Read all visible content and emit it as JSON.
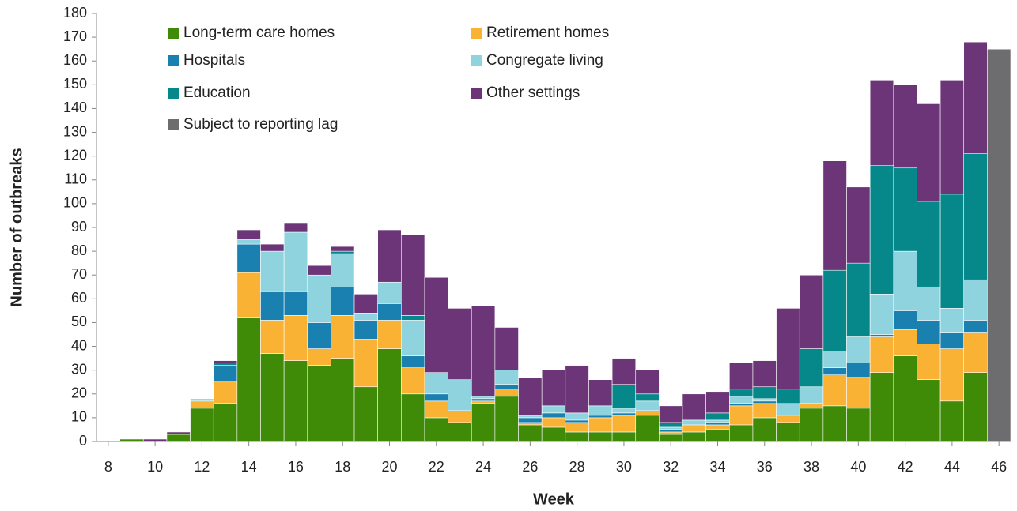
{
  "chart_data": {
    "type": "stacked_bar",
    "xlabel": "Week",
    "ylabel": "Number of outbreaks",
    "x": [
      9,
      10,
      11,
      12,
      13,
      14,
      15,
      16,
      17,
      18,
      19,
      20,
      21,
      22,
      23,
      24,
      25,
      26,
      27,
      28,
      29,
      30,
      31,
      32,
      33,
      34,
      35,
      36,
      37,
      38,
      39,
      40,
      41,
      42,
      43,
      44,
      45,
      46
    ],
    "xlim": [
      7.5,
      46.5
    ],
    "xticks": [
      8,
      10,
      12,
      14,
      16,
      18,
      20,
      22,
      24,
      26,
      28,
      30,
      32,
      34,
      36,
      38,
      40,
      42,
      44,
      46
    ],
    "ylim": [
      0,
      180
    ],
    "yticks": [
      0,
      10,
      20,
      30,
      40,
      50,
      60,
      70,
      80,
      90,
      100,
      110,
      120,
      130,
      140,
      150,
      160,
      170,
      180
    ],
    "grid": false,
    "legend": "top-left",
    "series": [
      {
        "name": "Long-term care homes",
        "color": "#3f8a06",
        "values": [
          1,
          0,
          3,
          14,
          16,
          52,
          37,
          34,
          32,
          35,
          23,
          39,
          20,
          10,
          8,
          16,
          19,
          7,
          6,
          4,
          4,
          4,
          11,
          3,
          4,
          5,
          7,
          10,
          8,
          14,
          15,
          14,
          29,
          36,
          26,
          17,
          29,
          null
        ]
      },
      {
        "name": "Retirement homes",
        "color": "#f9b234",
        "values": [
          0,
          0,
          0,
          3,
          9,
          19,
          14,
          19,
          7,
          18,
          20,
          12,
          11,
          7,
          5,
          1,
          3,
          1,
          4,
          4,
          6,
          7,
          2,
          1,
          3,
          2,
          8,
          6,
          3,
          2,
          13,
          13,
          15,
          11,
          15,
          22,
          17,
          null
        ]
      },
      {
        "name": "Hospitals",
        "color": "#1a80b0",
        "values": [
          0,
          0,
          0,
          0,
          7,
          12,
          12,
          10,
          11,
          12,
          8,
          7,
          5,
          3,
          0,
          1,
          2,
          2,
          2,
          1,
          1,
          1,
          0,
          1,
          0,
          1,
          1,
          1,
          0,
          0,
          3,
          6,
          1,
          8,
          10,
          7,
          5,
          null
        ]
      },
      {
        "name": "Congregate living",
        "color": "#8fd3de",
        "values": [
          0,
          0,
          0,
          1,
          0,
          2,
          17,
          25,
          20,
          14,
          3,
          9,
          15,
          9,
          13,
          1,
          6,
          1,
          3,
          3,
          4,
          2,
          4,
          1,
          2,
          1,
          3,
          1,
          5,
          7,
          7,
          11,
          17,
          25,
          14,
          10,
          17,
          null
        ]
      },
      {
        "name": "Education",
        "color": "#06878a",
        "values": [
          0,
          0,
          0,
          0,
          1,
          0,
          0,
          0,
          0,
          1,
          0,
          0,
          2,
          0,
          0,
          0,
          0,
          0,
          0,
          0,
          0,
          10,
          3,
          2,
          0,
          3,
          3,
          5,
          6,
          16,
          34,
          31,
          54,
          35,
          36,
          48,
          53,
          null
        ]
      },
      {
        "name": "Other settings",
        "color": "#6b3578",
        "values": [
          0,
          1,
          1,
          0,
          1,
          4,
          3,
          4,
          4,
          2,
          8,
          22,
          34,
          40,
          30,
          38,
          18,
          16,
          15,
          20,
          11,
          11,
          10,
          7,
          11,
          9,
          11,
          11,
          34,
          31,
          46,
          32,
          36,
          35,
          41,
          48,
          47,
          null
        ]
      },
      {
        "name": "Subject to reporting lag",
        "color": "#6d6d70",
        "values": [
          null,
          null,
          null,
          null,
          null,
          null,
          null,
          null,
          null,
          null,
          null,
          null,
          null,
          null,
          null,
          null,
          null,
          null,
          null,
          null,
          null,
          null,
          null,
          null,
          null,
          null,
          null,
          null,
          null,
          null,
          null,
          null,
          null,
          null,
          null,
          null,
          null,
          165
        ]
      }
    ]
  }
}
